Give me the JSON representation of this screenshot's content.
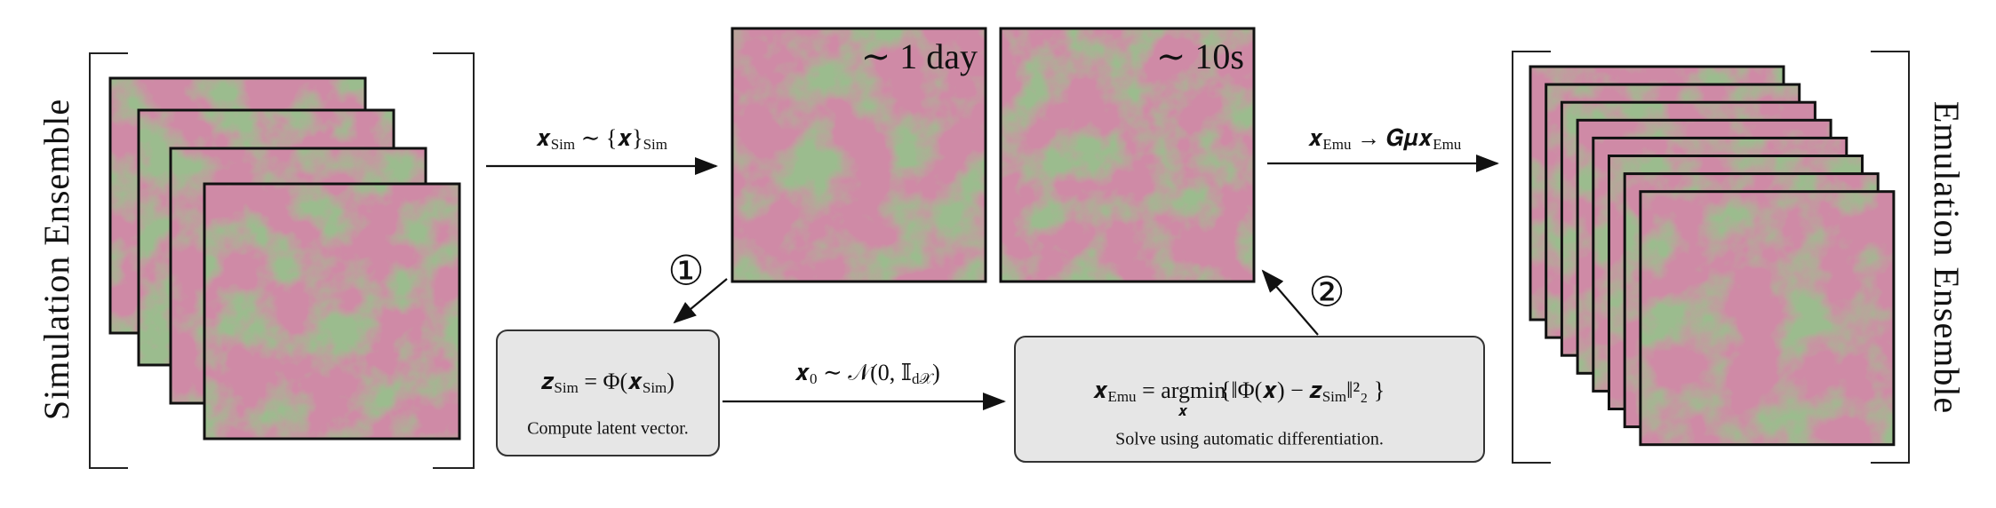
{
  "left_label": "Simulation Ensemble",
  "right_label": "Emulation Ensemble",
  "timing": [
    "∼ 1 day",
    "∼ 10s"
  ],
  "steps": [
    "①",
    "②"
  ],
  "sample_label": [
    "𝒙",
    "Sim",
    " ∼ {𝒙}",
    "Sim"
  ],
  "emulate_label": [
    "𝒙",
    "Emu",
    " → 𝑮𝝁𝒙",
    "Emu"
  ],
  "noise_label": [
    "𝒙",
    "0",
    " ∼ 𝒩(0, 𝕀",
    "d𝒳",
    ")"
  ],
  "encode_box": {
    "equation": [
      "𝒛",
      "Sim",
      " = Φ(𝒙",
      "Sim",
      ")"
    ],
    "caption": "Compute latent vector."
  },
  "solve_box": {
    "equation": [
      "𝒙",
      "Emu",
      " = argmin",
      "𝒙",
      " {‖Φ(𝒙) − 𝒛",
      "Sim",
      "‖²₂ }"
    ],
    "caption": "Solve using automatic differentiation."
  }
}
